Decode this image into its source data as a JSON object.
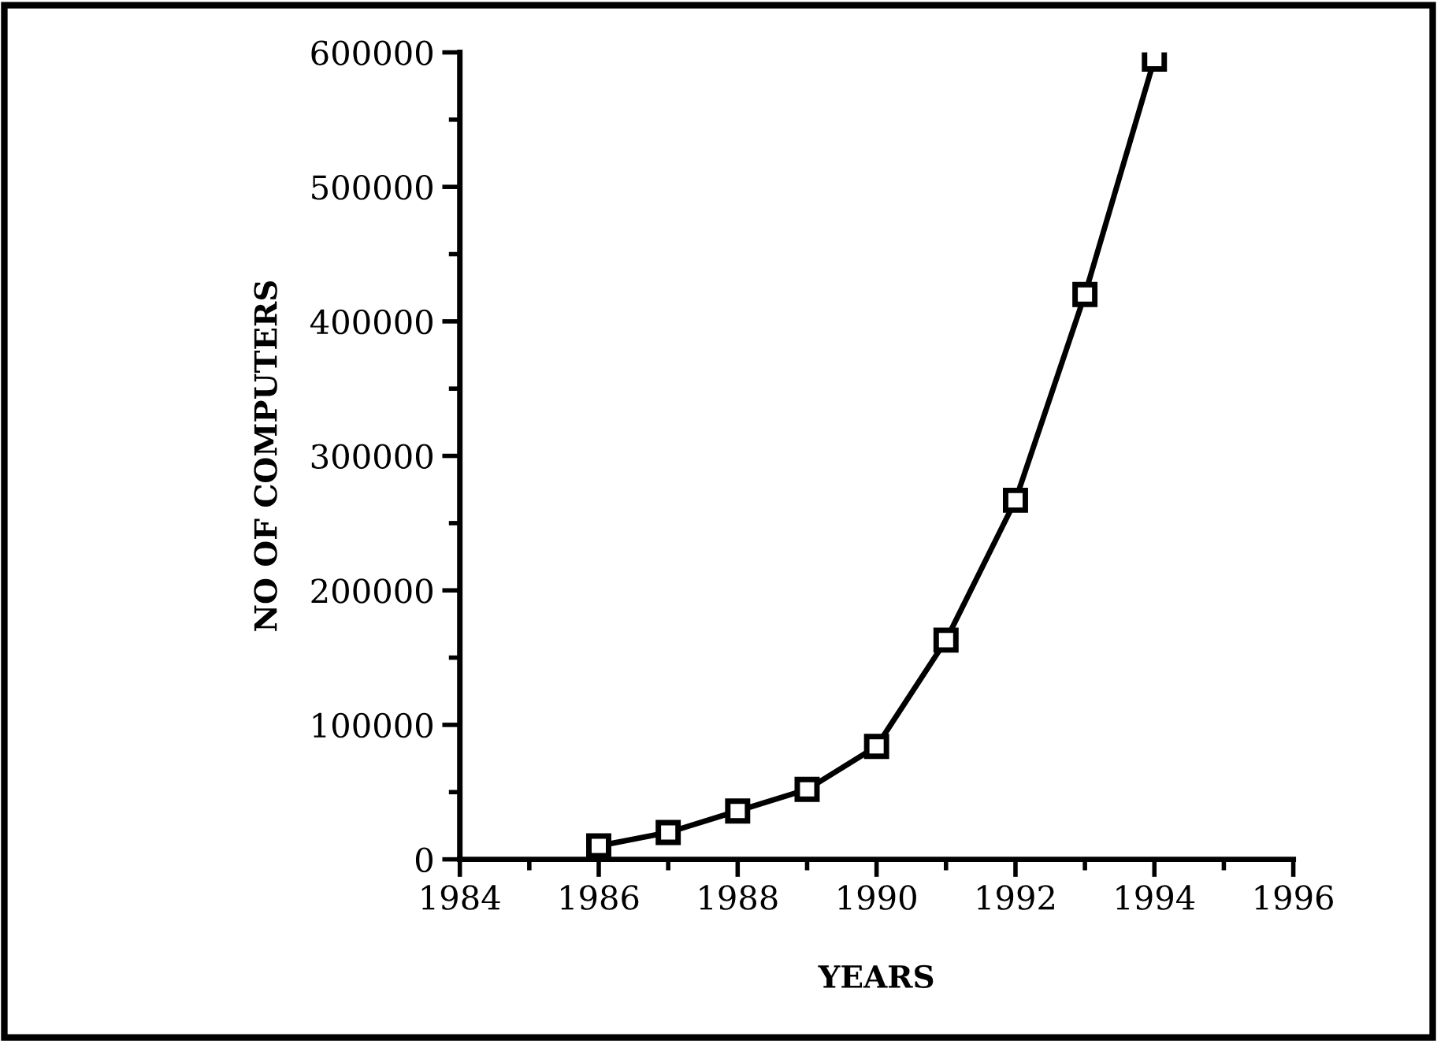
{
  "chart_data": {
    "type": "line",
    "xlabel": "YEARS",
    "ylabel": "NO OF COMPUTERS",
    "x": [
      1986,
      1987,
      1988,
      1989,
      1990,
      1991,
      1992,
      1993,
      1994
    ],
    "series": [
      {
        "color": "#000000",
        "values": [
          10000,
          20000,
          36000,
          52000,
          84000,
          163000,
          267000,
          420000,
          595000
        ]
      }
    ],
    "xlim": [
      1984,
      1996
    ],
    "xticks": [
      1984,
      1986,
      1988,
      1990,
      1992,
      1994,
      1996
    ],
    "ylim": [
      0,
      600000
    ],
    "yticks": [
      0,
      100000,
      200000,
      300000,
      400000,
      500000,
      600000
    ],
    "marker": "square",
    "line_style": "solid",
    "grid": false,
    "legend": false
  }
}
